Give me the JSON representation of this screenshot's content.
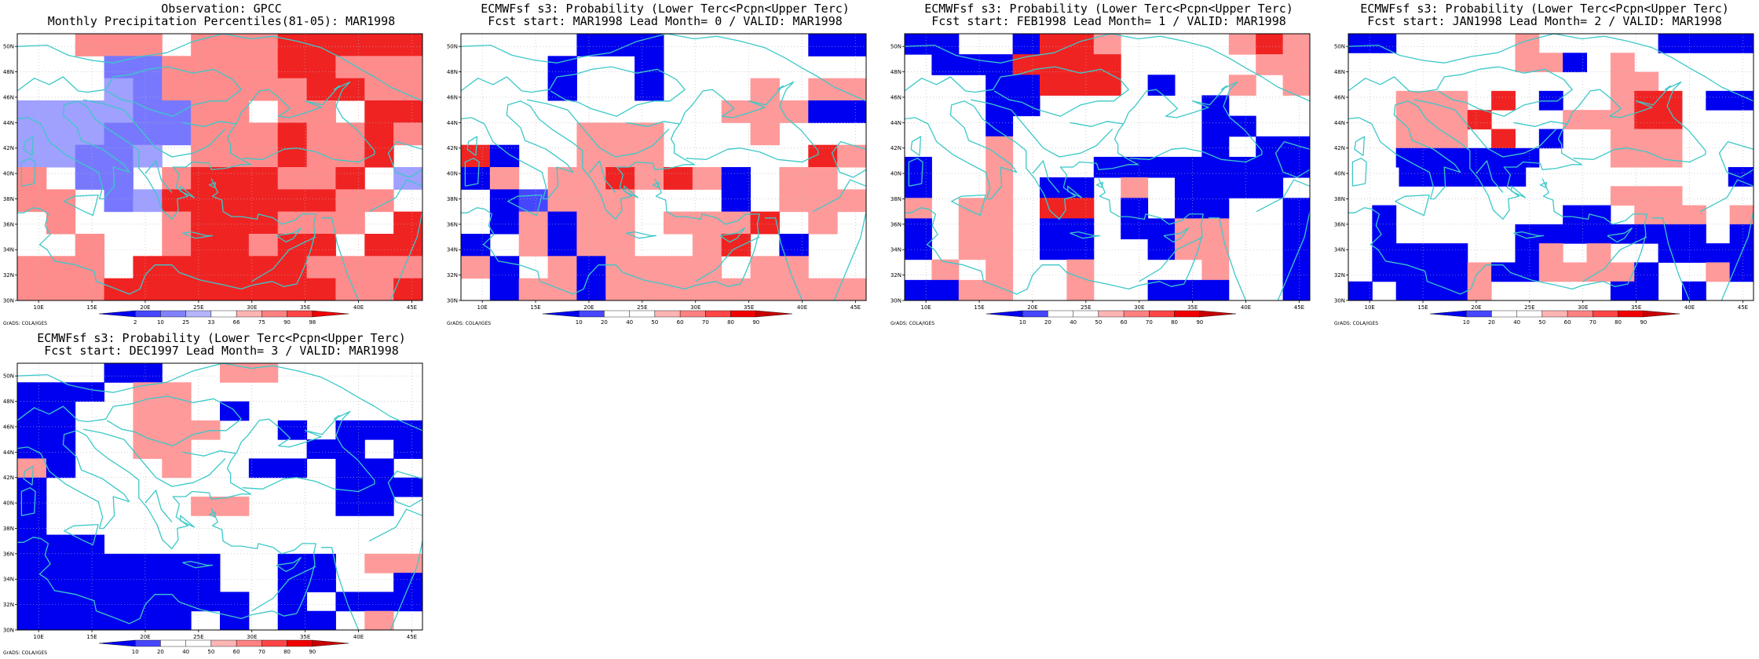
{
  "colors": {
    "obs": [
      "#0000f0",
      "#4646ff",
      "#8282ff",
      "#b4b4ff",
      "#ffffff",
      "#ffb4b4",
      "#ff8282",
      "#ff4646",
      "#f00000",
      "#c80000"
    ],
    "fcst": [
      "#0000f0",
      "#4646ff",
      "#ffffff",
      "#ffffff",
      "#ffb4b4",
      "#ff8282",
      "#ff4646",
      "#f00000",
      "#c80000"
    ],
    "coast": "#3cc8c8",
    "grid": "#b4b4b4"
  },
  "icons": [
    "grads-coast-map-icon"
  ],
  "panels": [
    {
      "title1": "Observation: GPCC",
      "title2": "Monthly Precipitation Percentiles(81-05): MAR1998",
      "colorbar_labels": [
        "2",
        "10",
        "25",
        "33",
        "66",
        "75",
        "90",
        "98"
      ],
      "credit": "GrADS: COLA/IGES",
      "grid": [
        "..rrr.rrrRRRRR",
        "...bbrrrrRRrrr",
        "...cbrrrrrRRrr",
        "ccccbbrr.rr.RR",
        "cccbbbrrrRrrRr",
        "ccbbc.rrrRrrR.",
        "r.bb.rRRRrrR.c",
        "rr.bcRRRRRRrr.",
        ".r...rRRRrrr.R",
        "..r..rRRrRR.RR",
        "rrr.RRRRRRrrrr",
        "rrrRRRRRRRRrrR"
      ]
    },
    {
      "title1": "ECMWFsf s3: Probability (Lower Terc<Pcpn<Upper Terc)",
      "title2": "Fcst start: MAR1998   Lead Month= 0 / VALID: MAR1998",
      "colorbar_labels": [
        "10",
        "20",
        "40",
        "50",
        "60",
        "70",
        "80",
        "90"
      ],
      "credit": "GrADS: COLA/IGES",
      "grid": [
        "....BBB.....BB",
        "...B..B.......",
        "...B..B...r.rr",
        ".........rrrBB",
        "....rrr...r...",
        "RB..rrr.....Rr",
        "Br.rrRrRrB.rr.",
        ".Bbrrr...B.rrr",
        ".BrBrr.rrrR.r.",
        "B.rBrr..rR.B..",
        "rB.rBrrrr.rr..",
        ".BrrBrrrrrrrrr"
      ]
    },
    {
      "title1": "ECMWFsf s3: Probability (Lower Terc<Pcpn<Upper Terc)",
      "title2": "Fcst start: FEB1998   Lead Month= 1 / VALID: MAR1998",
      "colorbar_labels": [
        "10",
        "20",
        "40",
        "50",
        "60",
        "70",
        "80",
        "90"
      ],
      "credit": "GrADS: COLA/IGES",
      "grid": [
        "BB..BRRr....rRr",
        ".BBBRRRR.....rr",
        "...BBRRR.B..r.r",
        "...BB......B...",
        "...B.......BB..",
        "...r.......B.BB",
        "B..r...BBBBBBBB",
        "B..r.BB.r.BBBB.",
        "r.rr.RR.B.BB..B",
        "B.rr.BB.BBrr..B",
        "B.rr.BB..Brr..B",
        ".r.r..r....r..B",
        "BBrr..r..BBB..B"
      ]
    },
    {
      "title1": "ECMWFsf s3: Probability (Lower Terc<Pcpn<Upper Terc)",
      "title2": "Fcst start: JAN1998   Lead Month= 2 / VALID: MAR1998",
      "colorbar_labels": [
        "10",
        "20",
        "40",
        "50",
        "60",
        "70",
        "80",
        "90"
      ],
      "credit": "GrADS: COLA/IGES",
      "grid": [
        "BB.....r.....BBBB",
        ".......rrB.r.....",
        "...........rr....",
        "..rrr.R.B..rRR.BB",
        "..rrrR...rrrRR...",
        "..rrr.R.B..rrr...",
        "..BBBBBB...rrr...",
        "..BBBBB........B",
        "...........rrr...",
        ".B.......BB.rrr.r",
        ".B.....BBBBBBBB.B",
        ".BBBB..Br.r..BBBB",
        ".BBBBrBBrrrrB..rB",
        "B.BBBr.....BB.B.."
      ]
    },
    {
      "title1": "ECMWFsf s3: Probability (Lower Terc<Pcpn<Upper Terc)",
      "title2": "Fcst start: DEC1997   Lead Month= 3 / VALID: MAR1998",
      "colorbar_labels": [
        "10",
        "20",
        "40",
        "50",
        "60",
        "70",
        "80",
        "90"
      ],
      "credit": "GrADS: COLA/IGES",
      "grid": [
        "...BB..rr.....",
        "BBB.rr........",
        "BB..rr.B......",
        "BB..rrr..B.BBB",
        "BB..rr....BB.B",
        "rB...r..BB.BB.",
        "B..........BBB",
        "B.....rr...BB.",
        "B.............",
        "BBB...........",
        "BBBBBBB..BB.rr",
        "BBBBBBB..BB..B",
        "BBBBBBBB.B.BBB",
        "BBBBBB.B.BB.r."
      ]
    }
  ]
}
